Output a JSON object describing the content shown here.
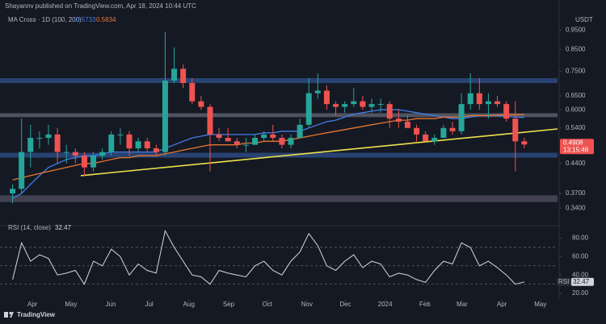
{
  "header": {
    "author_line": "Shayannv published on TradingView.com, Apr 18, 2024 10:44 UTC",
    "indicator": "MA Cross · 1D (100, 200)",
    "currency": "USDT"
  },
  "footer": {
    "brand": "TradingView"
  },
  "chart_data": [
    {
      "type": "candlestick",
      "log_scale": true,
      "open": [
        0.37,
        0.38,
        0.47,
        0.51,
        0.51,
        0.52,
        0.47,
        0.47,
        0.46,
        0.43,
        0.46,
        0.47,
        0.52,
        0.52,
        0.48,
        0.5,
        0.48,
        0.47,
        0.71,
        0.76,
        0.7,
        0.63,
        0.61,
        0.52,
        0.51,
        0.5,
        0.49,
        0.49,
        0.51,
        0.52,
        0.51,
        0.49,
        0.51,
        0.55,
        0.66,
        0.67,
        0.62,
        0.61,
        0.62,
        0.63,
        0.61,
        0.62,
        0.62,
        0.57,
        0.56,
        0.54,
        0.52,
        0.5,
        0.51,
        0.54,
        0.53,
        0.62,
        0.66,
        0.62,
        0.63,
        0.62,
        0.57,
        0.5
      ],
      "high": [
        0.39,
        0.57,
        0.55,
        0.53,
        0.55,
        0.54,
        0.49,
        0.48,
        0.47,
        0.47,
        0.48,
        0.53,
        0.54,
        0.53,
        0.51,
        0.51,
        0.49,
        0.94,
        0.86,
        0.78,
        0.72,
        0.65,
        0.62,
        0.54,
        0.54,
        0.51,
        0.51,
        0.52,
        0.53,
        0.55,
        0.52,
        0.52,
        0.57,
        0.72,
        0.74,
        0.69,
        0.63,
        0.63,
        0.68,
        0.65,
        0.64,
        0.64,
        0.63,
        0.6,
        0.58,
        0.55,
        0.53,
        0.52,
        0.55,
        0.56,
        0.66,
        0.74,
        0.72,
        0.66,
        0.65,
        0.63,
        0.63,
        0.51
      ],
      "low": [
        0.35,
        0.37,
        0.43,
        0.48,
        0.49,
        0.44,
        0.44,
        0.44,
        0.41,
        0.42,
        0.45,
        0.46,
        0.49,
        0.46,
        0.47,
        0.47,
        0.46,
        0.46,
        0.7,
        0.68,
        0.62,
        0.6,
        0.42,
        0.5,
        0.5,
        0.48,
        0.47,
        0.49,
        0.5,
        0.5,
        0.48,
        0.48,
        0.51,
        0.54,
        0.64,
        0.6,
        0.58,
        0.59,
        0.61,
        0.6,
        0.59,
        0.59,
        0.54,
        0.54,
        0.54,
        0.5,
        0.5,
        0.49,
        0.51,
        0.52,
        0.52,
        0.6,
        0.6,
        0.57,
        0.61,
        0.56,
        0.42,
        0.48
      ],
      "close": [
        0.38,
        0.47,
        0.51,
        0.51,
        0.52,
        0.47,
        0.47,
        0.46,
        0.43,
        0.46,
        0.47,
        0.52,
        0.52,
        0.48,
        0.5,
        0.48,
        0.47,
        0.71,
        0.76,
        0.7,
        0.63,
        0.61,
        0.52,
        0.51,
        0.5,
        0.49,
        0.49,
        0.51,
        0.52,
        0.51,
        0.49,
        0.51,
        0.55,
        0.66,
        0.67,
        0.62,
        0.61,
        0.62,
        0.63,
        0.61,
        0.62,
        0.62,
        0.57,
        0.56,
        0.54,
        0.52,
        0.5,
        0.51,
        0.54,
        0.53,
        0.62,
        0.66,
        0.62,
        0.63,
        0.62,
        0.57,
        0.5,
        0.4908
      ],
      "up_color": "#26a69a",
      "down_color": "#ef5350",
      "countdown": "13:15:48",
      "ma": [
        {
          "color": "#3f7ee8",
          "values": [
            0.36,
            0.37,
            0.39,
            0.41,
            0.43,
            0.44,
            0.45,
            0.455,
            0.46,
            0.46,
            0.465,
            0.47,
            0.47,
            0.47,
            0.47,
            0.47,
            0.47,
            0.48,
            0.49,
            0.5,
            0.51,
            0.515,
            0.52,
            0.52,
            0.52,
            0.52,
            0.52,
            0.52,
            0.525,
            0.525,
            0.53,
            0.53,
            0.53,
            0.54,
            0.55,
            0.56,
            0.565,
            0.575,
            0.585,
            0.59,
            0.595,
            0.6,
            0.6,
            0.6,
            0.595,
            0.59,
            0.585,
            0.58,
            0.575,
            0.57,
            0.57,
            0.575,
            0.58,
            0.58,
            0.58,
            0.578,
            0.575,
            0.5733
          ]
        },
        {
          "color": "#e8772e",
          "values": [
            0.4,
            0.405,
            0.41,
            0.415,
            0.42,
            0.425,
            0.43,
            0.435,
            0.44,
            0.44,
            0.445,
            0.45,
            0.455,
            0.455,
            0.46,
            0.46,
            0.46,
            0.465,
            0.47,
            0.475,
            0.48,
            0.485,
            0.49,
            0.49,
            0.49,
            0.49,
            0.495,
            0.495,
            0.5,
            0.5,
            0.5,
            0.505,
            0.51,
            0.515,
            0.52,
            0.525,
            0.53,
            0.535,
            0.54,
            0.545,
            0.55,
            0.555,
            0.56,
            0.565,
            0.565,
            0.57,
            0.57,
            0.57,
            0.575,
            0.575,
            0.575,
            0.58,
            0.58,
            0.58,
            0.582,
            0.583,
            0.583,
            0.5834
          ]
        }
      ],
      "zones": [
        {
          "low": 0.7,
          "high": 0.72,
          "color": "#2b4a80"
        },
        {
          "low": 0.575,
          "high": 0.588,
          "color": "#5a5e6c"
        },
        {
          "low": 0.455,
          "high": 0.468,
          "color": "#2b4a80"
        },
        {
          "low": 0.352,
          "high": 0.366,
          "color": "#4a495b"
        }
      ],
      "trendline": {
        "x": [
          7.6,
          60.7
        ],
        "y": [
          0.41,
          0.537
        ],
        "color": "#f0e14a"
      },
      "xlim": [
        -1.4,
        60.7
      ],
      "xticks": [
        {
          "value": 2.21,
          "label": "Apr"
        },
        {
          "value": 6.5,
          "label": "May"
        },
        {
          "value": 10.93,
          "label": "Jun"
        },
        {
          "value": 15.21,
          "label": "Jul"
        },
        {
          "value": 19.64,
          "label": "Aug"
        },
        {
          "value": 24.07,
          "label": "Sep"
        },
        {
          "value": 28.36,
          "label": "Oct"
        },
        {
          "value": 32.79,
          "label": "Nov"
        },
        {
          "value": 37.07,
          "label": "Dec"
        },
        {
          "value": 41.5,
          "label": "2024"
        },
        {
          "value": 45.93,
          "label": "Feb"
        },
        {
          "value": 50.07,
          "label": "Mar"
        },
        {
          "value": 54.5,
          "label": "Apr"
        },
        {
          "value": 58.79,
          "label": "May"
        }
      ],
      "ylim": [
        0.31,
        1.04
      ],
      "yticks": [
        {
          "value": 0.95,
          "label": "0.9500"
        },
        {
          "value": 0.85,
          "label": "0.8500"
        },
        {
          "value": 0.75,
          "label": "0.7500"
        },
        {
          "value": 0.65,
          "label": "0.6500"
        },
        {
          "value": 0.6,
          "label": "0.6000"
        },
        {
          "value": 0.54,
          "label": "0.5400"
        },
        {
          "value": 0.44,
          "label": "0.4400"
        },
        {
          "value": 0.37,
          "label": "0.3700"
        },
        {
          "value": 0.34,
          "label": "0.3400"
        }
      ]
    },
    {
      "type": "line",
      "title": "RSI (14, close)",
      "label": "RSI",
      "color": "#d6d8de",
      "values": [
        35,
        75,
        55,
        62,
        58,
        40,
        42,
        45,
        30,
        55,
        50,
        68,
        60,
        40,
        52,
        45,
        42,
        88,
        70,
        55,
        40,
        38,
        30,
        45,
        42,
        40,
        38,
        50,
        55,
        45,
        40,
        55,
        65,
        85,
        72,
        50,
        45,
        55,
        62,
        48,
        55,
        52,
        38,
        42,
        40,
        35,
        32,
        45,
        55,
        52,
        75,
        70,
        50,
        55,
        48,
        40,
        30,
        32.47
      ],
      "levels": [
        70,
        50,
        30
      ],
      "ylim": [
        13,
        91
      ],
      "yticks": [
        {
          "value": 80,
          "label": "80.00"
        },
        {
          "value": 60,
          "label": "60.00"
        },
        {
          "value": 40,
          "label": "40.00"
        },
        {
          "value": 20,
          "label": "20.00"
        }
      ]
    }
  ]
}
